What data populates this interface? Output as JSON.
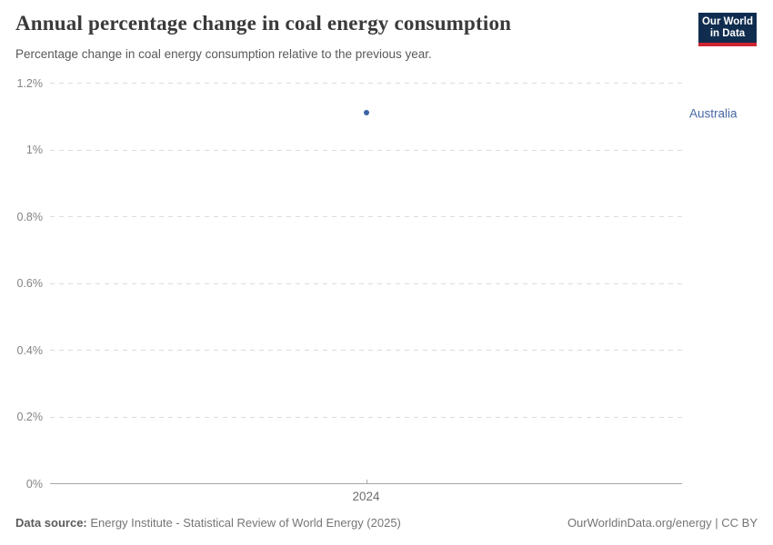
{
  "header": {
    "title": "Annual percentage change in coal energy consumption",
    "subtitle": "Percentage change in coal energy consumption relative to the previous year.",
    "logo": {
      "line1": "Our World",
      "line2": "in Data",
      "bg_color": "#102d50",
      "stripe_color": "#cf2430"
    }
  },
  "chart_data": {
    "type": "scatter",
    "title": "Annual percentage change in coal energy consumption",
    "x": [
      2024
    ],
    "series": [
      {
        "name": "Australia",
        "values": [
          1.11
        ],
        "color": "#3d63a5",
        "label_color": "#4667a3"
      }
    ],
    "xlabel": "",
    "ylabel": "",
    "ylim": [
      0,
      1.2
    ],
    "yticks": [
      {
        "value": 0,
        "label": "0%"
      },
      {
        "value": 0.2,
        "label": "0.2%"
      },
      {
        "value": 0.4,
        "label": "0.4%"
      },
      {
        "value": 0.6,
        "label": "0.6%"
      },
      {
        "value": 0.8,
        "label": "0.8%"
      },
      {
        "value": 1.0,
        "label": "1%"
      },
      {
        "value": 1.2,
        "label": "1.2%"
      }
    ],
    "xticks": [
      {
        "value": 2024,
        "label": "2024"
      }
    ],
    "grid": true,
    "legend_position": "right-of-point",
    "colors": {
      "gridline": "#dcdcdc",
      "axis": "#a6a6a6",
      "ytick_text": "#848484",
      "xtick_text": "#6e6e6e"
    }
  },
  "footer": {
    "datasource_label": "Data source:",
    "datasource_text": " Energy Institute - Statistical Review of World Energy (2025)",
    "credit": "OurWorldinData.org/energy | CC BY"
  }
}
